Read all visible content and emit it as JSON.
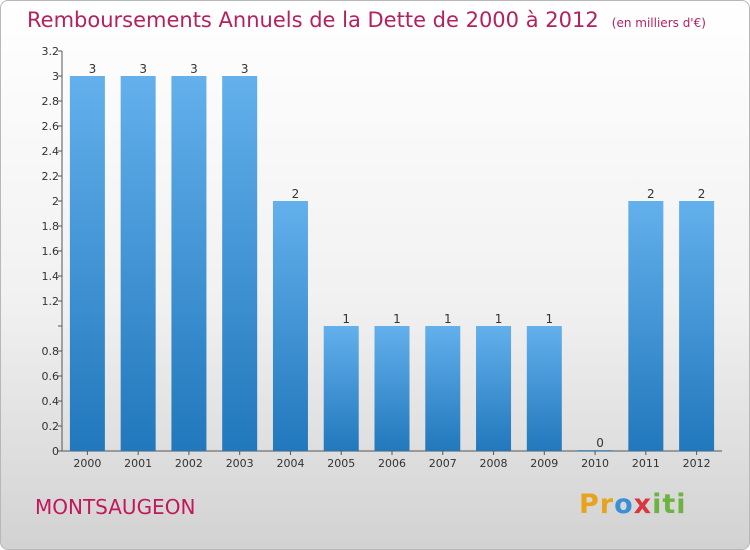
{
  "header": {
    "title": "Remboursements Annuels de la Dette de 2000 à 2012",
    "unit": "(en milliers d'€)"
  },
  "footer": {
    "commune": "MONTSAUGEON",
    "logo": "Proxiti"
  },
  "colors": {
    "title": "#b5215f",
    "bar_light": "#63b0ec",
    "bar_dark": "#2178bc",
    "axis": "#555555"
  },
  "chart_data": {
    "type": "bar",
    "title": "Remboursements Annuels de la Dette de 2000 à 2012",
    "unit": "(en milliers d'€)",
    "categories": [
      "2000",
      "2001",
      "2002",
      "2003",
      "2004",
      "2005",
      "2006",
      "2007",
      "2008",
      "2009",
      "2010",
      "2011",
      "2012"
    ],
    "values": [
      3,
      3,
      3,
      3,
      2,
      1,
      1,
      1,
      1,
      1,
      0,
      2,
      2
    ],
    "data_labels": [
      "3",
      "3",
      "3",
      "3",
      "2",
      "1",
      "1",
      "1",
      "1",
      "1",
      "0",
      "2",
      "2"
    ],
    "yticks": [
      0,
      0.2,
      0.4,
      0.6,
      0.8,
      1,
      1.2,
      1.4,
      1.6,
      1.8,
      2,
      2.2,
      2.4,
      2.6,
      2.8,
      3,
      3.2
    ],
    "ytick_labels": [
      "0",
      "0.2",
      "0.4",
      "0.6",
      "0.8",
      "",
      "1.2",
      "1.4",
      "1.6",
      "1.8",
      "2",
      "2.2",
      "2.4",
      "2.6",
      "2.8",
      "3",
      "3.2"
    ],
    "ylim": [
      0,
      3.2
    ],
    "grid": false,
    "legend": "none"
  }
}
